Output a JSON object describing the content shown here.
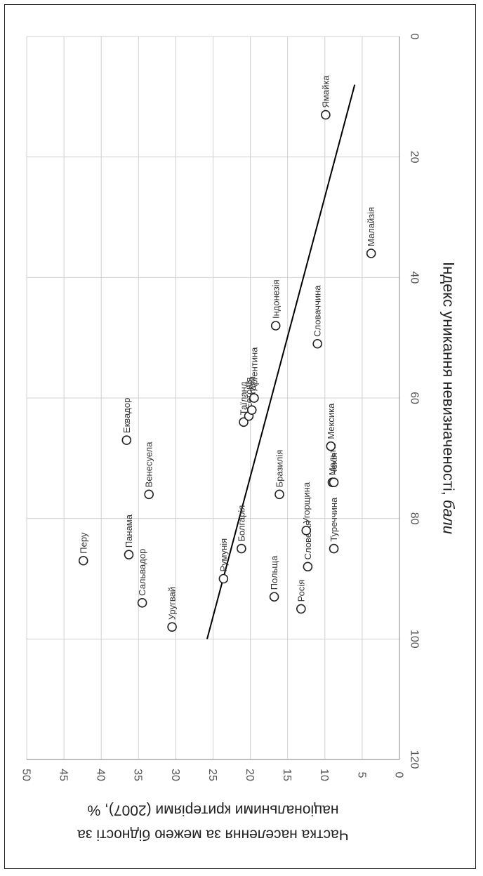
{
  "chart_data": {
    "type": "scatter",
    "orientation": "rotated-90-clockwise",
    "xlabel_text": "Індекс уникання невизначеності, ",
    "xlabel_italic": "бали",
    "ylabel_line1": "Частка населення за межею бідності за",
    "ylabel_line2": "національними критеріями (2007), %",
    "xlim": [
      0,
      120
    ],
    "ylim": [
      0,
      50
    ],
    "x_ticks": [
      "0",
      "20",
      "40",
      "60",
      "80",
      "100",
      "120"
    ],
    "y_ticks": [
      "0",
      "5",
      "10",
      "15",
      "20",
      "25",
      "30",
      "35",
      "40",
      "45",
      "50"
    ],
    "grid": true,
    "points": [
      {
        "name": "Перу",
        "x": 87,
        "y": 42.4
      },
      {
        "name": "Панама",
        "x": 86,
        "y": 36.3
      },
      {
        "name": "Еквадор",
        "x": 67,
        "y": 36.6
      },
      {
        "name": "Сальвадор",
        "x": 94,
        "y": 34.5
      },
      {
        "name": "Венесуела",
        "x": 76,
        "y": 33.6
      },
      {
        "name": "Уругвай",
        "x": 98,
        "y": 30.5
      },
      {
        "name": "Румунія",
        "x": 90,
        "y": 23.6
      },
      {
        "name": "Болгарія",
        "x": 85,
        "y": 21.2
      },
      {
        "name": "Таїланд",
        "x": 64,
        "y": 20.9
      },
      {
        "name": "Естонія",
        "x": 63,
        "y": 20.2
      },
      {
        "name": "Латвія",
        "x": 62,
        "y": 19.8
      },
      {
        "name": "Аргентина",
        "x": 60,
        "y": 19.5
      },
      {
        "name": "Польща",
        "x": 93,
        "y": 16.8
      },
      {
        "name": "Бразилія",
        "x": 76,
        "y": 16.1
      },
      {
        "name": "Індонезія",
        "x": 48,
        "y": 16.6
      },
      {
        "name": "Росія",
        "x": 95,
        "y": 13.2
      },
      {
        "name": "Словенія",
        "x": 88,
        "y": 12.3
      },
      {
        "name": "Угорщина",
        "x": 82,
        "y": 12.5
      },
      {
        "name": "Словаччина",
        "x": 51,
        "y": 11.0
      },
      {
        "name": "Ямайка",
        "x": 13,
        "y": 9.9
      },
      {
        "name": "Мальта",
        "x": 74,
        "y": 9.0
      },
      {
        "name": "Чехія",
        "x": 74,
        "y": 8.8
      },
      {
        "name": "Мексика",
        "x": 68,
        "y": 9.2
      },
      {
        "name": "Туреччина",
        "x": 85,
        "y": 8.8
      },
      {
        "name": "Малайзія",
        "x": 36,
        "y": 3.8
      }
    ],
    "trendline": {
      "x1": 8,
      "y1": 6.0,
      "x2": 100,
      "y2": 25.8
    }
  }
}
